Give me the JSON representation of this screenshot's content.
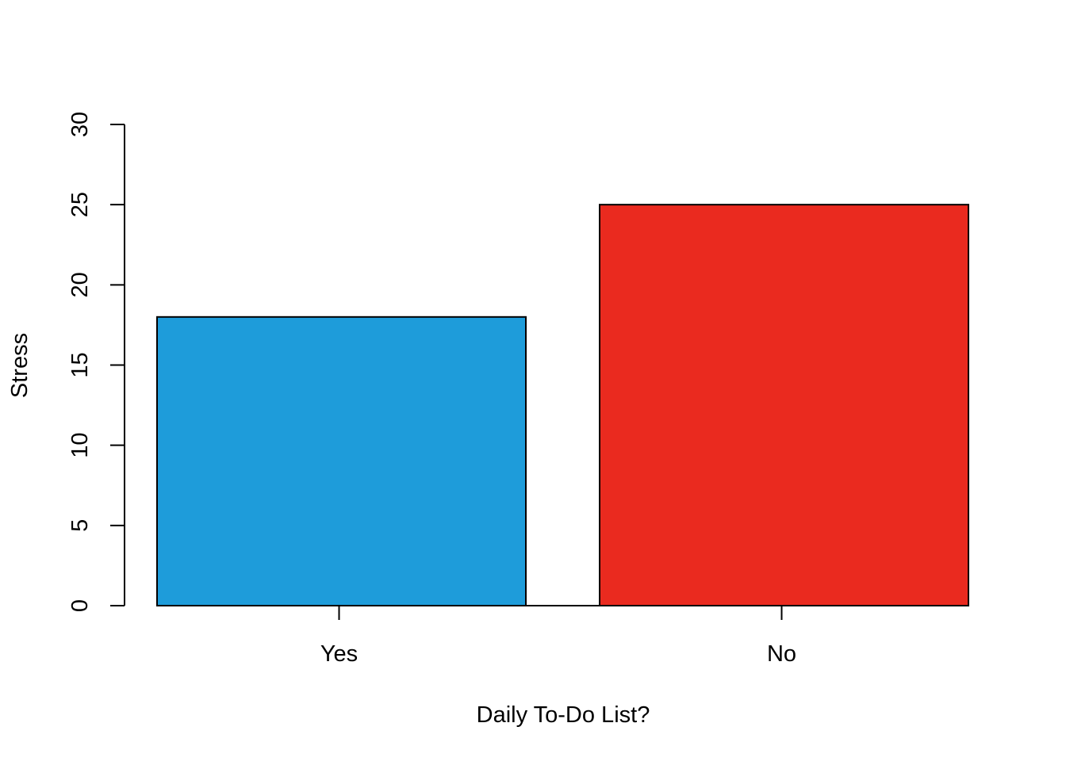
{
  "chart_data": {
    "type": "bar",
    "title": "",
    "xlabel": "Daily To-Do List?",
    "ylabel": "Stress",
    "categories": [
      "Yes",
      "No"
    ],
    "values": [
      18,
      25
    ],
    "colors": [
      "#1E9CDA",
      "#EA2A1F"
    ],
    "ylim": [
      0,
      30
    ],
    "yticks": [
      "0",
      "5",
      "10",
      "15",
      "20",
      "25",
      "30"
    ],
    "grid": false,
    "legend": "none"
  }
}
